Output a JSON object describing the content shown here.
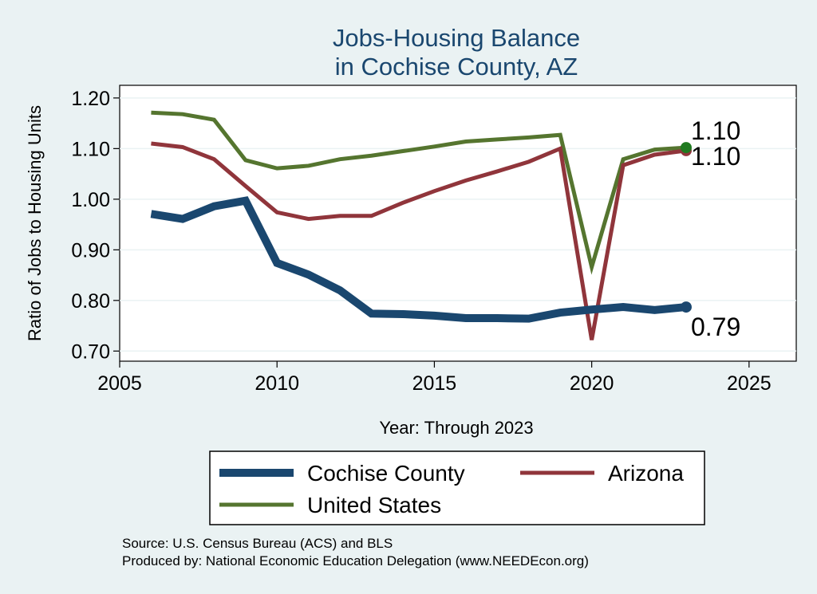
{
  "chart_data": {
    "type": "line",
    "title": [
      "Jobs-Housing Balance",
      "in Cochise County, AZ"
    ],
    "xlabel": "Year: Through 2023",
    "ylabel": "Ratio of Jobs to Housing Units",
    "xlim": [
      2005,
      2026.5
    ],
    "ylim": [
      0.68,
      1.225
    ],
    "xticks": [
      2005,
      2010,
      2015,
      2020,
      2025
    ],
    "yticks": [
      1.2,
      1.1,
      1.0,
      0.9,
      0.8,
      0.7
    ],
    "ytick_labels": [
      "1.20",
      "1.10",
      "1.00",
      "0.90",
      "0.80",
      "0.70"
    ],
    "grid": true,
    "legend_position": "bottom",
    "x": [
      2006,
      2007,
      2008,
      2009,
      2010,
      2011,
      2012,
      2013,
      2014,
      2015,
      2016,
      2017,
      2018,
      2019,
      2020,
      2021,
      2022,
      2023
    ],
    "series": [
      {
        "name": "Cochise County",
        "color": "#1a476f",
        "line_width": 10,
        "values": [
          0.971,
          0.961,
          0.986,
          0.997,
          0.874,
          0.851,
          0.82,
          0.774,
          0.773,
          0.77,
          0.765,
          0.765,
          0.764,
          0.776,
          0.782,
          0.787,
          0.781,
          0.787
        ],
        "end_label": "0.79",
        "end_color": "#1a476f"
      },
      {
        "name": "Arizona",
        "color": "#90353b",
        "line_width": 5,
        "values": [
          1.11,
          1.103,
          1.079,
          1.026,
          0.974,
          0.961,
          0.967,
          0.967,
          0.993,
          1.016,
          1.037,
          1.055,
          1.074,
          1.1,
          0.722,
          1.067,
          1.088,
          1.096
        ],
        "end_label": "1.10",
        "end_color": "#90353b"
      },
      {
        "name": "United States",
        "color": "#55752f",
        "line_width": 5,
        "values": [
          1.171,
          1.168,
          1.157,
          1.077,
          1.061,
          1.066,
          1.079,
          1.086,
          1.095,
          1.104,
          1.114,
          1.118,
          1.122,
          1.127,
          0.866,
          1.079,
          1.098,
          1.102
        ],
        "end_label": "1.10",
        "end_color": "#1f7a1f"
      }
    ],
    "notes": [
      "Source: U.S. Census Bureau (ACS) and BLS",
      "Produced by: National Economic Education Delegation (www.NEEDEcon.org)"
    ]
  }
}
